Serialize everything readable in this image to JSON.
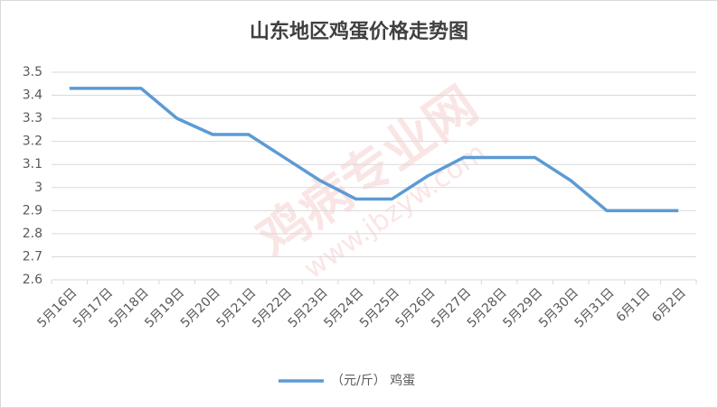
{
  "chart_data": {
    "type": "line",
    "title": "山东地区鸡蛋价格走势图",
    "categories": [
      "5月16日",
      "5月17日",
      "5月18日",
      "5月19日",
      "5月20日",
      "5月21日",
      "5月22日",
      "5月23日",
      "5月24日",
      "5月25日",
      "5月26日",
      "5月27日",
      "5月28日",
      "5月29日",
      "5月30日",
      "5月31日",
      "6月1日",
      "6月2日"
    ],
    "series": [
      {
        "name": "（元/斤） 鸡蛋",
        "color": "#5b9bd5",
        "values": [
          3.43,
          3.43,
          3.43,
          3.3,
          3.23,
          3.23,
          3.13,
          3.03,
          2.95,
          2.95,
          3.05,
          3.13,
          3.13,
          3.13,
          3.03,
          2.9,
          2.9,
          2.9
        ]
      }
    ],
    "ylim": [
      2.6,
      3.5
    ],
    "yticks": [
      2.6,
      2.7,
      2.8,
      2.9,
      3,
      3.1,
      3.2,
      3.3,
      3.4,
      3.5
    ],
    "grid": true,
    "legend": "bottom",
    "watermark": [
      "鸡病专业网",
      "www.jbzyw.com"
    ]
  }
}
